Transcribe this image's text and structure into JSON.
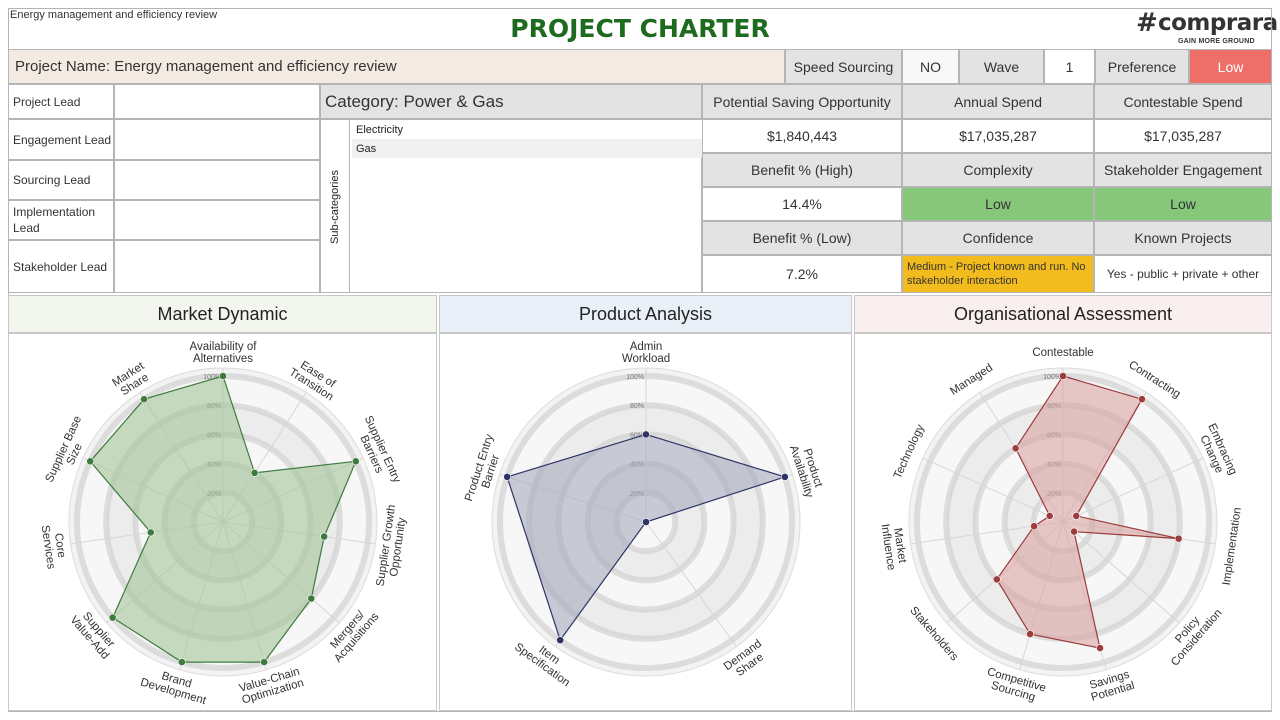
{
  "header": {
    "small_title": "Energy management and efficiency review",
    "title": "PROJECT CHARTER",
    "logo_hash": "#",
    "logo_text": "comprara",
    "logo_tagline": "GAIN MORE GROUND"
  },
  "project_row": {
    "name": "Project Name: Energy management and efficiency review",
    "speed_sourcing_label": "Speed Sourcing",
    "speed_sourcing_value": "NO",
    "wave_label": "Wave",
    "wave_value": "1",
    "preference_label": "Preference",
    "preference_value": "Low"
  },
  "leads": [
    {
      "label": "Project Lead",
      "value": ""
    },
    {
      "label": "Engagement Lead",
      "value": ""
    },
    {
      "label": "Sourcing Lead",
      "value": ""
    },
    {
      "label": "Implementation Lead",
      "value": ""
    },
    {
      "label": "Stakeholder Lead",
      "value": ""
    }
  ],
  "category": {
    "prefix": "Category:",
    "name": "Power & Gas",
    "subcategories_label": "Sub-categories",
    "subcategories": [
      "Electricity",
      "Gas"
    ]
  },
  "metrics": {
    "potential_saving_label": "Potential Saving Opportunity",
    "potential_saving_value": "$1,840,443",
    "annual_spend_label": "Annual Spend",
    "annual_spend_value": "$17,035,287",
    "contestable_spend_label": "Contestable Spend",
    "contestable_spend_value": "$17,035,287",
    "benefit_high_label": "Benefit % (High)",
    "benefit_high_value": "14.4%",
    "complexity_label": "Complexity",
    "complexity_value": "Low",
    "stakeholder_engagement_label": "Stakeholder Engagement",
    "stakeholder_engagement_value": "Low",
    "benefit_low_label": "Benefit % (Low)",
    "benefit_low_value": "7.2%",
    "confidence_label": "Confidence",
    "confidence_value": "Medium - Project known and run. No  stakeholder interaction",
    "known_projects_label": "Known Projects",
    "known_projects_value": "Yes - public  + private  + other"
  },
  "colors": {
    "title_green": "#1e6a1e",
    "preference_low": "#ee6f6a",
    "status_low": "#86c77a",
    "confidence_medium": "#f2bb1e",
    "name_row_bg": "#f3ebe2",
    "market_head_bg": "#f2f6ee",
    "product_head_bg": "#eaf0f7",
    "org_head_bg": "#f9efef"
  },
  "chart_data": [
    {
      "type": "radar",
      "title": "Market Dynamic",
      "ticks": [
        "20%",
        "40%",
        "60%",
        "80%",
        "100%"
      ],
      "categories": [
        "Availability of Alternatives",
        "Ease of Transition",
        "Supplier Entry Barriers",
        "Supplier Growth Opportunity",
        "Mergers/ Acquisitions",
        "Value-Chain Optimization",
        "Brand Development",
        "Supplier Value-Add",
        "Core Services",
        "Supplier Base Size",
        "Market Share"
      ],
      "values": [
        100,
        40,
        100,
        70,
        80,
        100,
        100,
        100,
        50,
        100,
        100
      ],
      "stroke": "#3d7a3d",
      "fill": "#a3c49a"
    },
    {
      "type": "radar",
      "title": "Product Analysis",
      "ticks": [
        "20%",
        "40%",
        "60%",
        "80%",
        "100%"
      ],
      "categories": [
        "Admin Workload",
        "Product Availability",
        "Demand Share",
        "Item Specification",
        "Product Entry Barrier"
      ],
      "values": [
        60,
        100,
        0,
        100,
        100
      ],
      "stroke": "#2f3466",
      "fill": "#a6abbe"
    },
    {
      "type": "radar",
      "title": "Organisational Assessment",
      "ticks": [
        "20%",
        "40%",
        "60%",
        "80%",
        "100%"
      ],
      "categories": [
        "Contestable",
        "Contracting",
        "Embracing Change",
        "Implementation",
        "Policy Consideration",
        "Savings Potential",
        "Competitive Sourcing",
        "Stakeholders",
        "Market Influence",
        "Technology",
        "Managed"
      ],
      "values": [
        100,
        100,
        10,
        80,
        10,
        90,
        80,
        60,
        20,
        10,
        60
      ],
      "stroke": "#9c3c3c",
      "fill": "#dba4a4"
    }
  ]
}
